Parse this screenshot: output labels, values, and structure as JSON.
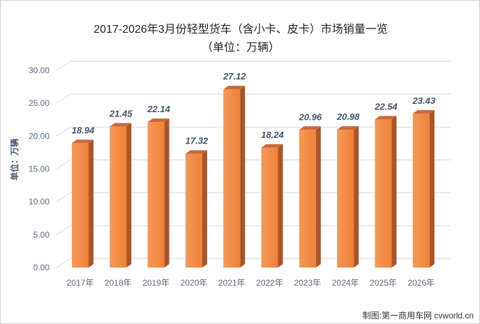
{
  "chart_data": {
    "type": "bar",
    "title": "2017-2026年3月份轻型货车（含小卡、皮卡）市场销量一览",
    "subtitle": "（单位：万辆）",
    "ylabel": "单位：万辆",
    "xlabel": "",
    "categories": [
      "2017年",
      "2018年",
      "2019年",
      "2020年",
      "2021年",
      "2022年",
      "2023年",
      "2024年",
      "2025年",
      "2026年"
    ],
    "values": [
      18.94,
      21.45,
      22.14,
      17.32,
      27.12,
      18.24,
      20.96,
      20.98,
      22.54,
      23.43
    ],
    "value_labels": [
      "18.94",
      "21.45",
      "22.14",
      "17.32",
      "27.12",
      "18.24",
      "20.96",
      "20.98",
      "22.54",
      "23.43"
    ],
    "ylim": [
      0,
      30
    ],
    "yticks": [
      "0.00",
      "5.00",
      "10.00",
      "15.00",
      "20.00",
      "25.00",
      "30.00"
    ],
    "grid": true,
    "style": "3d-column",
    "colors": {
      "bar_front": "#f08a45",
      "bar_side": "#a9552a",
      "bar_top": "#c9693a"
    }
  },
  "source": "制图:第一商用车网 cvworld.cn"
}
